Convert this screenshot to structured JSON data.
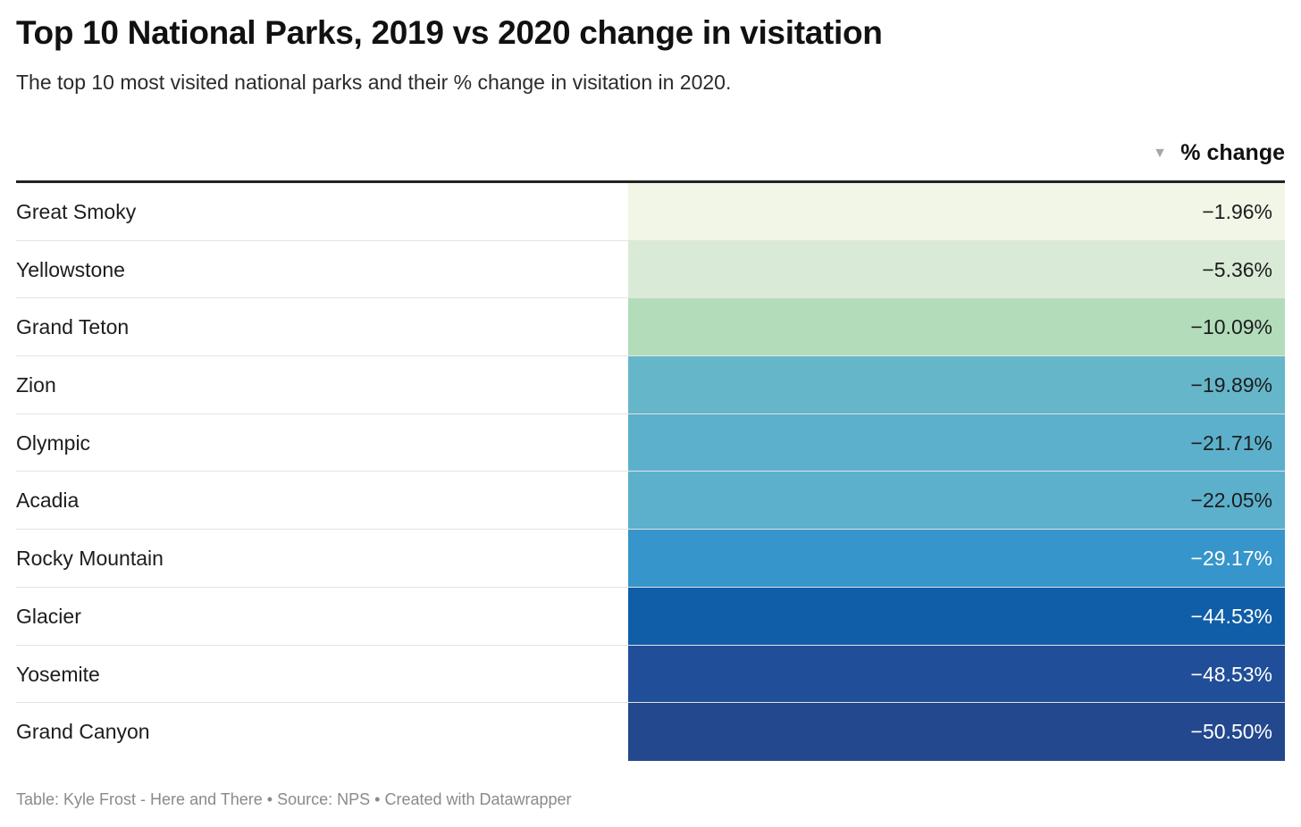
{
  "header": {
    "title": "Top 10 National Parks, 2019 vs 2020 change in visitation",
    "subtitle": "The top 10 most visited national parks and their % change in visitation in 2020.",
    "sort_icon": "sort-descending-icon",
    "column_label": "% change"
  },
  "chart_data": {
    "type": "table",
    "title": "Top 10 National Parks, 2019 vs 2020 change in visitation",
    "subtitle": "The top 10 most visited national parks and their % change in visitation in 2020.",
    "columns": [
      "",
      "% change"
    ],
    "rows": [
      {
        "park": "Great Smoky",
        "change": -1.96,
        "label": "−1.96%",
        "color": "#f1f6e7"
      },
      {
        "park": "Yellowstone",
        "change": -5.36,
        "label": "−5.36%",
        "color": "#d9ebd6"
      },
      {
        "park": "Grand Teton",
        "change": -10.09,
        "label": "−10.09%",
        "color": "#b3dcbb"
      },
      {
        "park": "Zion",
        "change": -19.89,
        "label": "−19.89%",
        "color": "#66b6ca"
      },
      {
        "park": "Olympic",
        "change": -21.71,
        "label": "−21.71%",
        "color": "#5cb0cc"
      },
      {
        "park": "Acadia",
        "change": -22.05,
        "label": "−22.05%",
        "color": "#5cb0cc"
      },
      {
        "park": "Rocky Mountain",
        "change": -29.17,
        "label": "−29.17%",
        "color": "#3695cb"
      },
      {
        "park": "Glacier",
        "change": -44.53,
        "label": "−44.53%",
        "color": "#105da8"
      },
      {
        "park": "Yosemite",
        "change": -48.53,
        "label": "−48.53%",
        "color": "#214e98"
      },
      {
        "park": "Grand Canyon",
        "change": -50.5,
        "label": "−50.50%",
        "color": "#23488e"
      }
    ],
    "sort": "descending by % change"
  },
  "footer": {
    "text": "Table: Kyle Frost - Here and There • Source: NPS • Created with Datawrapper"
  }
}
